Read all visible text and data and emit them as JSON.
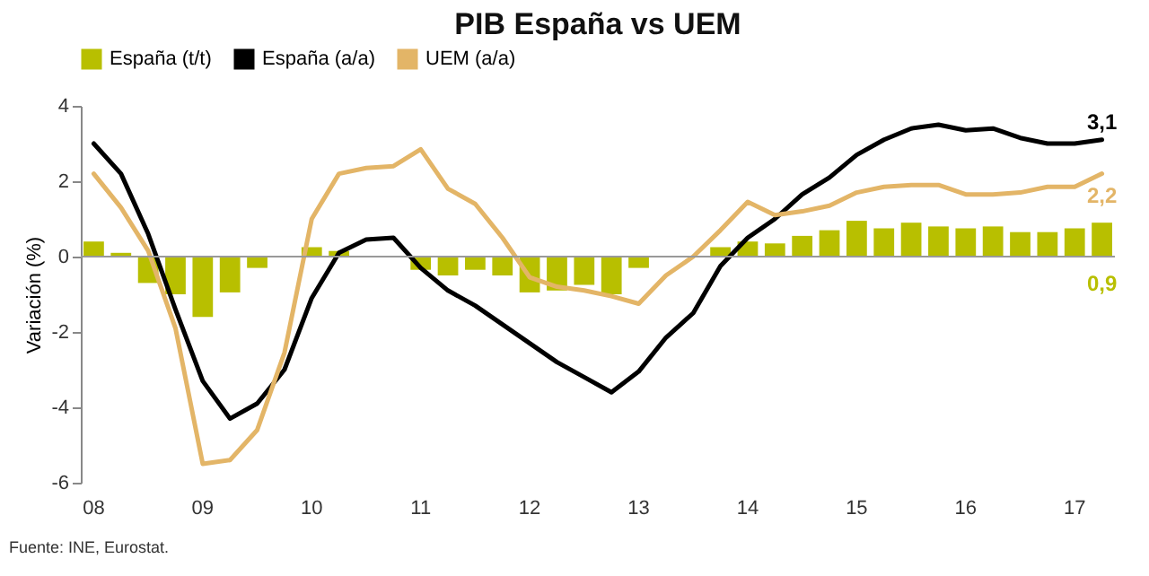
{
  "chart_data": {
    "type": "bar",
    "title": "PIB España vs UEM",
    "ylabel": "Variación (%)",
    "categories": [
      "08",
      null,
      null,
      null,
      "09",
      null,
      null,
      null,
      "10",
      null,
      null,
      null,
      "11",
      null,
      null,
      null,
      "12",
      null,
      null,
      null,
      "13",
      null,
      null,
      null,
      "14",
      null,
      null,
      null,
      "15",
      null,
      null,
      null,
      "16",
      null,
      null,
      null,
      "17",
      null
    ],
    "series": [
      {
        "name": "España (t/t)",
        "color": "#b8bf00",
        "values": [
          0.4,
          0.1,
          -0.7,
          -1.0,
          -1.6,
          -0.95,
          -0.3,
          null,
          0.25,
          0.15,
          null,
          0.0,
          -0.35,
          -0.5,
          -0.35,
          -0.5,
          -0.95,
          -0.9,
          -0.75,
          -1.0,
          -0.3,
          null,
          0.0,
          0.25,
          0.4,
          0.35,
          0.55,
          0.7,
          0.95,
          0.75,
          0.9,
          0.8,
          0.75,
          0.8,
          0.65,
          0.65,
          0.75,
          0.9
        ]
      },
      {
        "name": "España (a/a)",
        "type": "line",
        "color": "#000000",
        "values": [
          3.0,
          2.2,
          0.6,
          -1.4,
          -3.3,
          -4.3,
          -3.9,
          -3.0,
          -1.1,
          0.1,
          0.45,
          0.5,
          -0.3,
          -0.9,
          -1.3,
          -1.8,
          -2.3,
          -2.8,
          -3.2,
          -3.6,
          -3.05,
          -2.15,
          -1.5,
          -0.25,
          0.5,
          1.0,
          1.65,
          2.1,
          2.7,
          3.1,
          3.4,
          3.5,
          3.35,
          3.4,
          3.15,
          3.0,
          3.0,
          3.1
        ]
      },
      {
        "name": "UEM (a/a)",
        "type": "line",
        "color": "#e3b567",
        "values": [
          2.2,
          1.3,
          0.15,
          -1.9,
          -5.5,
          -5.4,
          -4.6,
          -2.55,
          1.0,
          2.2,
          2.35,
          2.4,
          2.85,
          1.8,
          1.4,
          0.5,
          -0.55,
          -0.8,
          -0.9,
          -1.05,
          -1.25,
          -0.5,
          0.0,
          0.7,
          1.45,
          1.1,
          1.2,
          1.35,
          1.7,
          1.85,
          1.9,
          1.9,
          1.65,
          1.65,
          1.7,
          1.85,
          1.85,
          2.2
        ]
      }
    ],
    "ylim": [
      -6,
      4
    ],
    "yticks": [
      -6,
      -4,
      -2,
      0,
      2,
      4
    ],
    "grid": false,
    "legend": "top",
    "ref_lines": [
      {
        "axis": "y",
        "value": 0,
        "color": "#999999"
      }
    ],
    "annotations": [
      {
        "text": "3,1",
        "y": 3.1
      },
      {
        "text": "2,2",
        "y": 2.2
      },
      {
        "text": "0,9",
        "y": 0.9
      },
      "Fuente: INE, Eurostat."
    ]
  }
}
